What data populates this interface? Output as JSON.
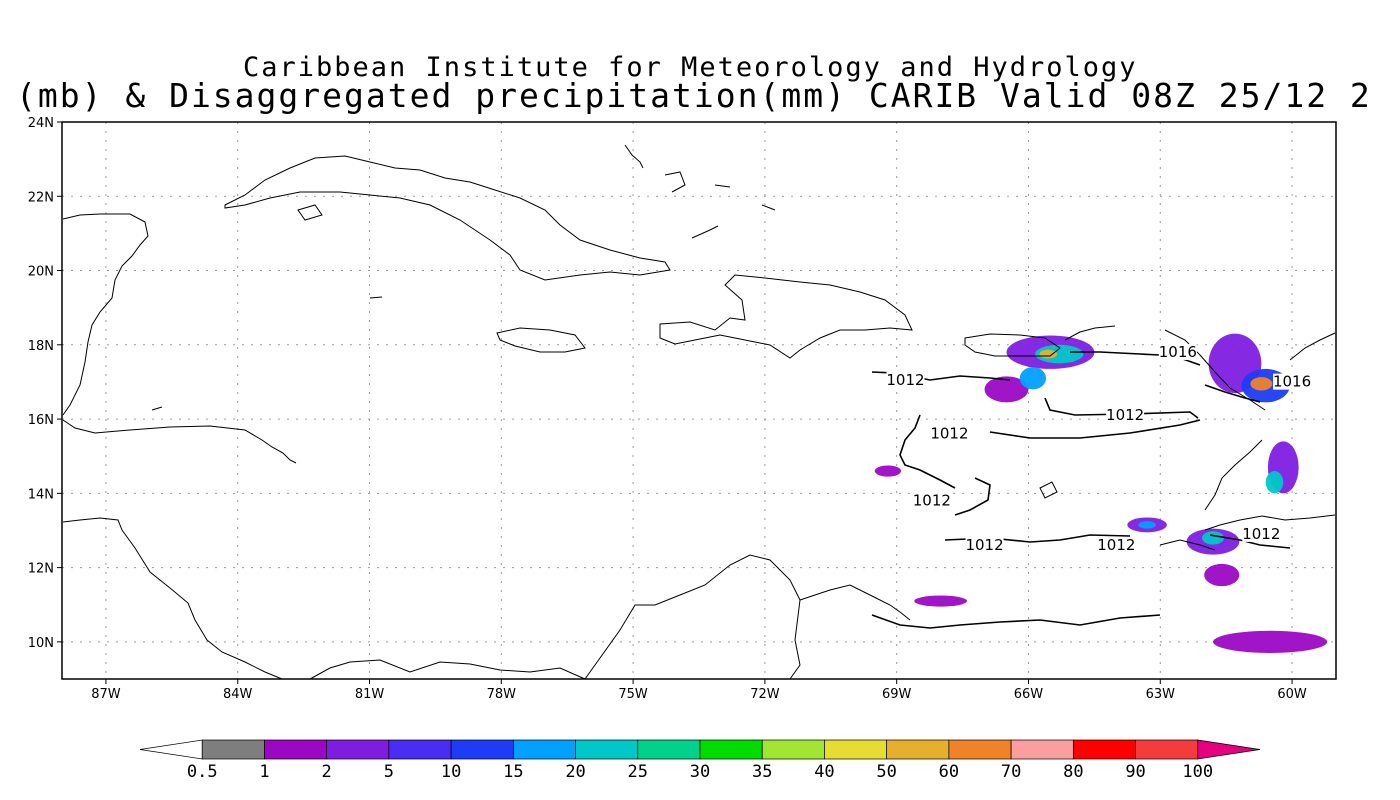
{
  "title": {
    "line1": "Caribbean Institute for Meteorology and Hydrology",
    "line2": "(mb) & Disaggregated precipitation(mm) CARIB Valid 08Z 25/12 2"
  },
  "map": {
    "lon_range": [
      -88.0,
      -59.0
    ],
    "lat_range": [
      9.0,
      24.0
    ],
    "grid": true,
    "lat_ticks": [
      {
        "value": 10,
        "label": "10N"
      },
      {
        "value": 12,
        "label": "12N"
      },
      {
        "value": 14,
        "label": "14N"
      },
      {
        "value": 16,
        "label": "16N"
      },
      {
        "value": 18,
        "label": "18N"
      },
      {
        "value": 20,
        "label": "20N"
      },
      {
        "value": 22,
        "label": "22N"
      },
      {
        "value": 24,
        "label": "24N"
      }
    ],
    "lon_ticks": [
      {
        "value": -87,
        "label": "87W"
      },
      {
        "value": -84,
        "label": "84W"
      },
      {
        "value": -81,
        "label": "81W"
      },
      {
        "value": -78,
        "label": "78W"
      },
      {
        "value": -75,
        "label": "75W"
      },
      {
        "value": -72,
        "label": "72W"
      },
      {
        "value": -69,
        "label": "69W"
      },
      {
        "value": -66,
        "label": "66W"
      },
      {
        "value": -63,
        "label": "63W"
      },
      {
        "value": -60,
        "label": "60W"
      }
    ],
    "contour_labels": [
      {
        "text": "1016",
        "lon": -62.6,
        "lat": 17.7
      },
      {
        "text": "1016",
        "lon": -60.0,
        "lat": 16.9
      },
      {
        "text": "1012",
        "lon": -68.8,
        "lat": 16.95
      },
      {
        "text": "1012",
        "lon": -63.8,
        "lat": 16.0
      },
      {
        "text": "1012",
        "lon": -67.8,
        "lat": 15.5
      },
      {
        "text": "1012",
        "lon": -68.2,
        "lat": 13.7
      },
      {
        "text": "1012",
        "lon": -67.0,
        "lat": 12.5
      },
      {
        "text": "1012",
        "lon": -64.0,
        "lat": 12.5
      },
      {
        "text": "1012",
        "lon": -60.7,
        "lat": 12.8
      }
    ],
    "precip_cells": [
      {
        "lon": -65.5,
        "lat": 17.8,
        "rx": 1.0,
        "ry": 0.45,
        "level": 3
      },
      {
        "lon": -65.3,
        "lat": 17.75,
        "rx": 0.55,
        "ry": 0.25,
        "level": 7
      },
      {
        "lon": -65.55,
        "lat": 17.75,
        "rx": 0.2,
        "ry": 0.12,
        "level": 12
      },
      {
        "lon": -66.5,
        "lat": 16.8,
        "rx": 0.5,
        "ry": 0.35,
        "level": 2
      },
      {
        "lon": -65.9,
        "lat": 17.1,
        "rx": 0.3,
        "ry": 0.3,
        "level": 6
      },
      {
        "lon": -61.3,
        "lat": 17.5,
        "rx": 0.6,
        "ry": 0.8,
        "level": 3
      },
      {
        "lon": -60.6,
        "lat": 16.9,
        "rx": 0.55,
        "ry": 0.45,
        "level": 5
      },
      {
        "lon": -60.7,
        "lat": 16.95,
        "rx": 0.25,
        "ry": 0.18,
        "level": 13
      },
      {
        "lon": -60.2,
        "lat": 14.7,
        "rx": 0.35,
        "ry": 0.7,
        "level": 3
      },
      {
        "lon": -60.4,
        "lat": 14.3,
        "rx": 0.2,
        "ry": 0.3,
        "level": 7
      },
      {
        "lon": -63.3,
        "lat": 13.15,
        "rx": 0.45,
        "ry": 0.2,
        "level": 3
      },
      {
        "lon": -63.3,
        "lat": 13.15,
        "rx": 0.2,
        "ry": 0.1,
        "level": 6
      },
      {
        "lon": -61.8,
        "lat": 12.7,
        "rx": 0.6,
        "ry": 0.35,
        "level": 3
      },
      {
        "lon": -61.8,
        "lat": 12.8,
        "rx": 0.25,
        "ry": 0.18,
        "level": 7
      },
      {
        "lon": -61.6,
        "lat": 11.8,
        "rx": 0.4,
        "ry": 0.3,
        "level": 2
      },
      {
        "lon": -60.5,
        "lat": 10.0,
        "rx": 1.3,
        "ry": 0.3,
        "level": 2
      },
      {
        "lon": -68.0,
        "lat": 11.1,
        "rx": 0.6,
        "ry": 0.15,
        "level": 2
      },
      {
        "lon": -69.2,
        "lat": 14.6,
        "rx": 0.3,
        "ry": 0.15,
        "level": 2
      }
    ]
  },
  "colorbar": {
    "colors": [
      "#ffffff",
      "#7e7e7e",
      "#9b08c4",
      "#7e1de0",
      "#4b2cf2",
      "#1e3cf6",
      "#00a0ff",
      "#00c8c8",
      "#00d28c",
      "#00dc00",
      "#a0e632",
      "#e6dc32",
      "#e6af2d",
      "#f08228",
      "#fa9ea0",
      "#ff0000",
      "#f53c3c",
      "#e6007f"
    ],
    "labels": [
      "0.5",
      "1",
      "2",
      "5",
      "10",
      "15",
      "20",
      "25",
      "30",
      "35",
      "40",
      "50",
      "60",
      "70",
      "80",
      "90",
      "100"
    ]
  }
}
